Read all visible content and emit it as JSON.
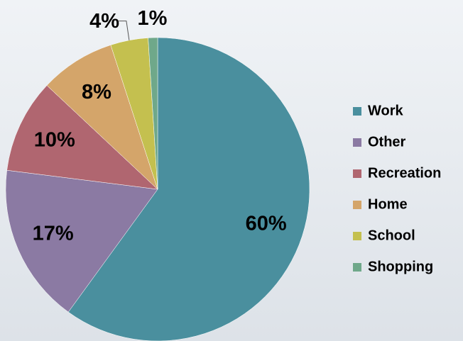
{
  "chart_data": {
    "type": "pie",
    "categories": [
      "Work",
      "Other",
      "Recreation",
      "Home",
      "School",
      "Shopping"
    ],
    "values": [
      60,
      17,
      10,
      8,
      4,
      1
    ],
    "value_labels": [
      "60%",
      "17%",
      "10%",
      "8%",
      "4%",
      "1%"
    ],
    "colors": [
      "#4a8f9e",
      "#8b7aa3",
      "#b06670",
      "#d4a56a",
      "#c4c04f",
      "#6fa88a"
    ],
    "legend": "right"
  }
}
